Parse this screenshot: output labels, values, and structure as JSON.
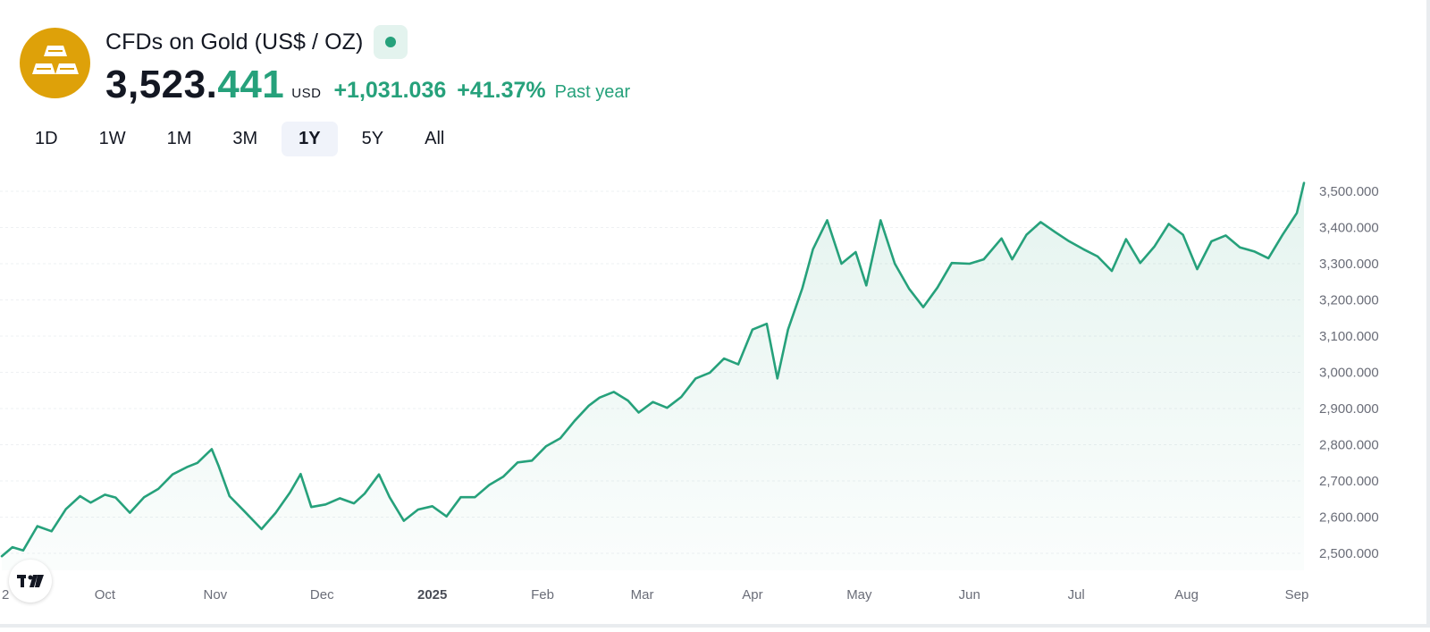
{
  "symbol": {
    "title": "CFDs on Gold (US$ / OZ)",
    "logo_icon": "gold-bars-icon",
    "status_icon": "market-open-dot"
  },
  "quote": {
    "price_main": "3,523.",
    "price_decimals": "441",
    "currency": "USD",
    "change_abs": "+1,031.036",
    "change_pct": "+41.37%",
    "period": "Past year"
  },
  "ranges": [
    "1D",
    "1W",
    "1M",
    "3M",
    "1Y",
    "5Y",
    "All"
  ],
  "active_range": "1Y",
  "colors": {
    "accent": "#26a17b",
    "logo_bg": "#dea109",
    "badge_bg": "#e3f3ee",
    "grid": "#eef0f3",
    "axis_text": "#6a6d78"
  },
  "chart_data": {
    "type": "area",
    "title": "CFDs on Gold (US$ / OZ)",
    "xlabel": "",
    "ylabel": "",
    "ylim": [
      2450,
      3550
    ],
    "grid": true,
    "legend": "none",
    "y_ticks": [
      2500,
      2600,
      2700,
      2800,
      2900,
      3000,
      3100,
      3200,
      3300,
      3400,
      3500
    ],
    "y_tick_labels": [
      "2,500.000",
      "2,600.000",
      "2,700.000",
      "2,800.000",
      "2,900.000",
      "3,000.000",
      "3,100.000",
      "3,200.000",
      "3,300.000",
      "3,400.000",
      "3,500.000"
    ],
    "x_ticks": [
      {
        "date": "2024-09-02",
        "label": "2",
        "bold": false
      },
      {
        "date": "2024-10-01",
        "label": "Oct",
        "bold": false
      },
      {
        "date": "2024-11-01",
        "label": "Nov",
        "bold": false
      },
      {
        "date": "2024-12-01",
        "label": "Dec",
        "bold": false
      },
      {
        "date": "2025-01-01",
        "label": "2025",
        "bold": true
      },
      {
        "date": "2025-02-01",
        "label": "Feb",
        "bold": false
      },
      {
        "date": "2025-03-01",
        "label": "Mar",
        "bold": false
      },
      {
        "date": "2025-04-01",
        "label": "Apr",
        "bold": false
      },
      {
        "date": "2025-05-01",
        "label": "May",
        "bold": false
      },
      {
        "date": "2025-06-01",
        "label": "Jun",
        "bold": false
      },
      {
        "date": "2025-07-01",
        "label": "Jul",
        "bold": false
      },
      {
        "date": "2025-08-01",
        "label": "Aug",
        "bold": false
      },
      {
        "date": "2025-09-01",
        "label": "Sep",
        "bold": false
      }
    ],
    "series": [
      {
        "x": [
          "2024-09-02",
          "2024-09-05",
          "2024-09-08",
          "2024-09-12",
          "2024-09-16",
          "2024-09-20",
          "2024-09-24",
          "2024-09-27",
          "2024-10-01",
          "2024-10-04",
          "2024-10-08",
          "2024-10-12",
          "2024-10-16",
          "2024-10-20",
          "2024-10-24",
          "2024-10-27",
          "2024-10-31",
          "2024-11-02",
          "2024-11-05",
          "2024-11-09",
          "2024-11-14",
          "2024-11-18",
          "2024-11-22",
          "2024-11-25",
          "2024-11-28",
          "2024-12-02",
          "2024-12-06",
          "2024-12-10",
          "2024-12-13",
          "2024-12-17",
          "2024-12-20",
          "2024-12-24",
          "2024-12-28",
          "2025-01-01",
          "2025-01-05",
          "2025-01-09",
          "2025-01-13",
          "2025-01-17",
          "2025-01-21",
          "2025-01-25",
          "2025-01-29",
          "2025-02-02",
          "2025-02-06",
          "2025-02-10",
          "2025-02-14",
          "2025-02-17",
          "2025-02-21",
          "2025-02-25",
          "2025-02-28",
          "2025-03-04",
          "2025-03-08",
          "2025-03-12",
          "2025-03-16",
          "2025-03-20",
          "2025-03-24",
          "2025-03-28",
          "2025-04-01",
          "2025-04-05",
          "2025-04-08",
          "2025-04-11",
          "2025-04-15",
          "2025-04-18",
          "2025-04-22",
          "2025-04-26",
          "2025-04-30",
          "2025-05-03",
          "2025-05-07",
          "2025-05-11",
          "2025-05-15",
          "2025-05-19",
          "2025-05-23",
          "2025-05-27",
          "2025-06-01",
          "2025-06-05",
          "2025-06-10",
          "2025-06-13",
          "2025-06-17",
          "2025-06-21",
          "2025-06-25",
          "2025-06-29",
          "2025-07-03",
          "2025-07-07",
          "2025-07-11",
          "2025-07-15",
          "2025-07-19",
          "2025-07-23",
          "2025-07-27",
          "2025-07-31",
          "2025-08-04",
          "2025-08-08",
          "2025-08-12",
          "2025-08-16",
          "2025-08-20",
          "2025-08-24",
          "2025-08-28",
          "2025-09-01",
          "2025-09-03"
        ],
        "values": [
          2492,
          2517,
          2508,
          2575,
          2561,
          2622,
          2658,
          2640,
          2662,
          2654,
          2612,
          2655,
          2678,
          2718,
          2738,
          2750,
          2788,
          2740,
          2658,
          2618,
          2567,
          2612,
          2668,
          2719,
          2628,
          2635,
          2652,
          2638,
          2665,
          2718,
          2655,
          2590,
          2621,
          2630,
          2602,
          2655,
          2655,
          2689,
          2712,
          2751,
          2756,
          2796,
          2818,
          2866,
          2908,
          2930,
          2946,
          2922,
          2889,
          2918,
          2902,
          2932,
          2983,
          2999,
          3038,
          3022,
          3118,
          3134,
          2983,
          3118,
          3232,
          3340,
          3420,
          3300,
          3332,
          3240,
          3420,
          3300,
          3231,
          3180,
          3234,
          3302,
          3300,
          3312,
          3370,
          3312,
          3380,
          3415,
          3388,
          3362,
          3340,
          3320,
          3280,
          3368,
          3302,
          3348,
          3410,
          3380,
          3285,
          3362,
          3378,
          3345,
          3334,
          3315,
          3380,
          3440,
          3523
        ],
        "color": "#26a17b"
      }
    ]
  }
}
